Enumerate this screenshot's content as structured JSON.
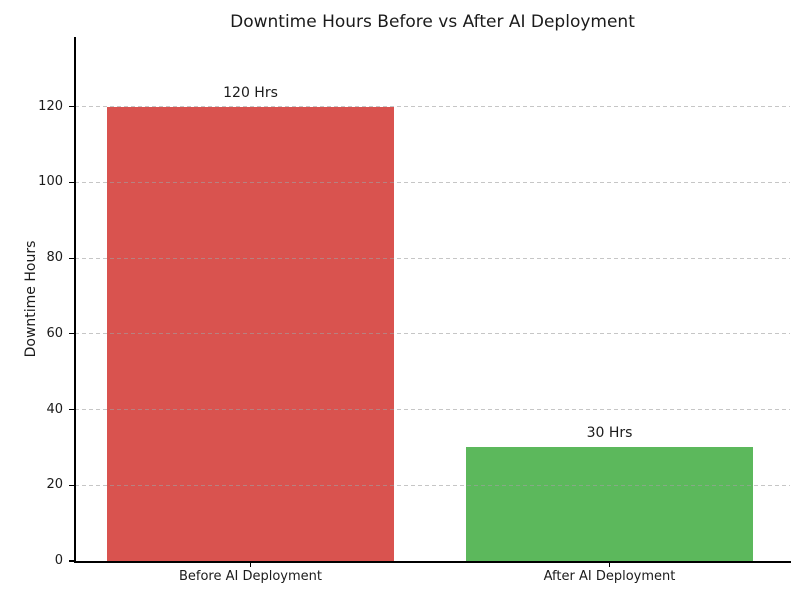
{
  "chart_data": {
    "type": "bar",
    "title": "Downtime Hours Before vs After AI Deployment",
    "ylabel": "Downtime Hours",
    "xlabel": "",
    "categories": [
      "Before AI Deployment",
      "After AI Deployment"
    ],
    "values": [
      120,
      30
    ],
    "bar_labels": [
      "120 Hrs",
      "30 Hrs"
    ],
    "bar_colors": [
      "#d9534f",
      "#5cb85c"
    ],
    "yticks": [
      0,
      20,
      40,
      60,
      80,
      100,
      120
    ],
    "ylim": [
      0,
      138.4
    ],
    "grid": {
      "axis": "y",
      "style": "dashed",
      "color": "#c6c6c6",
      "drawn_over_bars": true
    },
    "legend": "none",
    "background": "#ffffff",
    "text_color": "#1b1b1b",
    "spine_color": "#000000"
  }
}
